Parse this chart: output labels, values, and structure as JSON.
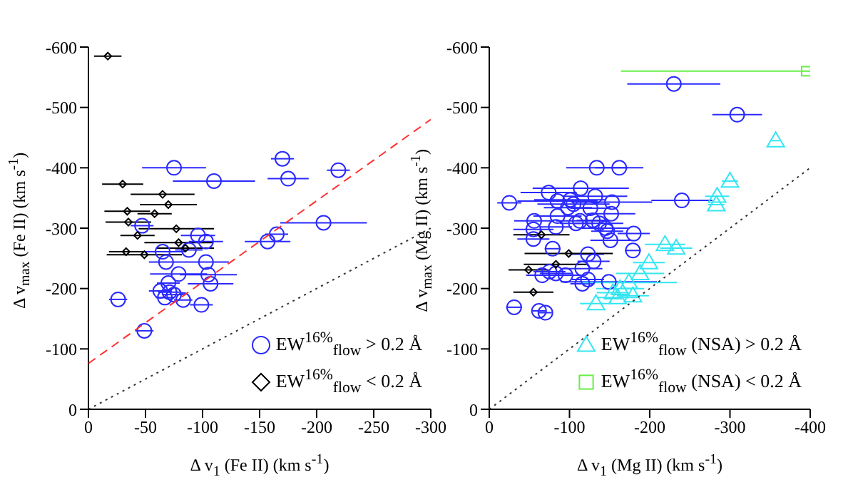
{
  "chart_data": [
    {
      "type": "scatter",
      "xlabel": "Δ v$_{1}$ (Fe II) (km s$^{-1}$)",
      "ylabel": "Δ v$_{max}$ (Fe II) (km s$^{-1}$)",
      "xlim": [
        0,
        -300
      ],
      "xticks": [
        0,
        -50,
        -100,
        -150,
        -200,
        -250,
        -300
      ],
      "ylim": [
        0,
        -600
      ],
      "yticks": [
        0,
        -100,
        -200,
        -300,
        -400,
        -500,
        -600
      ],
      "grid": false,
      "legend": "bottom right",
      "series": [
        {
          "name": "EW$^{16%}$$_{flow}$ > 0.2 Å",
          "color": "#2a2aff",
          "marker": "circle",
          "x": [
            -75,
            -170,
            -175,
            -219,
            -110,
            -206,
            -165,
            -157,
            -47,
            -96,
            -103,
            -65,
            -88,
            -68,
            -103,
            -79,
            -105,
            -70,
            -107,
            -63,
            -71,
            -75,
            -67,
            -83,
            -99,
            -26,
            -49
          ],
          "values": [
            -400,
            -415,
            -382,
            -396,
            -378,
            -309,
            -290,
            -278,
            -304,
            -288,
            -278,
            -261,
            -264,
            -244,
            -244,
            -224,
            -223,
            -209,
            -208,
            -196,
            -194,
            -190,
            -185,
            -181,
            -173,
            -182,
            -130
          ],
          "xerrors": [
            28,
            10,
            18,
            10,
            36,
            38,
            10,
            20,
            10,
            15,
            15,
            20,
            12,
            15,
            20,
            25,
            25,
            10,
            20,
            10,
            10,
            10,
            8,
            8,
            10,
            8,
            8
          ]
        },
        {
          "name": "EW$^{16%}$$_{flow}$ < 0.2 Å",
          "color": "#000000",
          "marker": "diamond",
          "x": [
            -17,
            -30,
            -65,
            -70,
            -34,
            -58,
            -35,
            -77,
            -43,
            -79,
            -33,
            -49,
            -85
          ],
          "values": [
            -585,
            -373,
            -356,
            -339,
            -328,
            -324,
            -310,
            -299,
            -288,
            -276,
            -261,
            -256,
            -267
          ],
          "xerrors": [
            12,
            18,
            28,
            25,
            20,
            15,
            20,
            33,
            15,
            30,
            15,
            33,
            25
          ]
        },
        {
          "type": "line",
          "color": "#ff3030",
          "line_style": "dashed",
          "marker": "none",
          "x": [
            0,
            -300
          ],
          "values": [
            -76,
            -480
          ]
        },
        {
          "type": "line",
          "color": "#333333",
          "line_style": "dotted",
          "marker": "none",
          "x": [
            0,
            -300
          ],
          "values": [
            0,
            -300
          ]
        }
      ]
    },
    {
      "type": "scatter",
      "xlabel": "Δ v$_{1}$ (Mg II) (km s$^{-1}$)",
      "ylabel": "Δ v$_{max}$ (Mg II) (km s$^{-1}$)",
      "xlim": [
        0,
        -400
      ],
      "xticks": [
        0,
        -100,
        -200,
        -300,
        -400
      ],
      "ylim": [
        0,
        -600
      ],
      "yticks": [
        0,
        -100,
        -200,
        -300,
        -400,
        -500,
        -600
      ],
      "grid": false,
      "legend": "bottom right",
      "series": [
        {
          "color": "#2a2aff",
          "marker": "circle",
          "x": [
            -230,
            -309,
            -134,
            -162,
            -114,
            -74,
            -25,
            -85,
            -101,
            -132,
            -153,
            -240,
            -105,
            -98,
            -126,
            -152,
            -85,
            -56,
            -83,
            -55,
            -113,
            -108,
            -129,
            -137,
            -145,
            -147,
            -180,
            -55,
            -151,
            -79,
            -179,
            -123,
            -130,
            -116,
            -83,
            -95,
            -66,
            -75,
            -123,
            -116,
            -149,
            -31,
            -62,
            -70
          ],
          "values": [
            -539,
            -488,
            -400,
            -400,
            -366,
            -359,
            -342,
            -345,
            -347,
            -353,
            -343,
            -346,
            -340,
            -334,
            -333,
            -324,
            -320,
            -312,
            -302,
            -298,
            -312,
            -308,
            -313,
            -308,
            -300,
            -295,
            -291,
            -282,
            -280,
            -266,
            -263,
            -257,
            -245,
            -233,
            -225,
            -222,
            -222,
            -228,
            -215,
            -208,
            -211,
            -169,
            -163,
            -160
          ],
          "xerrors": [
            58,
            31,
            38,
            30,
            60,
            35,
            15,
            50,
            45,
            40,
            50,
            38,
            45,
            30,
            25,
            30,
            30,
            25,
            20,
            25,
            30,
            20,
            20,
            30,
            30,
            20,
            20,
            20,
            25,
            10,
            10,
            20,
            20,
            25,
            20,
            20,
            20,
            20,
            20,
            15,
            60,
            10,
            8,
            8
          ]
        },
        {
          "color": "#000000",
          "marker": "diamond",
          "x": [
            -65,
            -99,
            -83,
            -49,
            -55
          ],
          "values": [
            -289,
            -258,
            -240,
            -231,
            -194
          ],
          "xerrors": [
            35,
            55,
            40,
            25,
            25
          ]
        },
        {
          "name": "EW$^{16%}$$_{flow}$ (NSA) > 0.2 Å",
          "color": "#33e6f2",
          "marker": "triangle",
          "x": [
            -357,
            -300,
            -284,
            -283,
            -219,
            -233,
            -199,
            -188,
            -174,
            -163,
            -154,
            -160,
            -179,
            -133
          ],
          "values": [
            -445,
            -378,
            -353,
            -339,
            -273,
            -267,
            -243,
            -225,
            -210,
            -200,
            -193,
            -185,
            -188,
            -175
          ],
          "xerrors": [
            5,
            10,
            15,
            10,
            25,
            20,
            20,
            30,
            60,
            30,
            20,
            25,
            20,
            20
          ]
        },
        {
          "name": "EW$^{16%}$$_{flow}$ (NSA) < 0.2 Å",
          "color": "#66ee44",
          "marker": "square",
          "x": [
            -395
          ],
          "values": [
            -560
          ],
          "xerrors": [
            [
              -400,
              -164
            ]
          ]
        },
        {
          "type": "line",
          "color": "#333333",
          "line_style": "dotted",
          "marker": "none",
          "x": [
            0,
            -400
          ],
          "values": [
            0,
            -400
          ]
        }
      ]
    }
  ]
}
